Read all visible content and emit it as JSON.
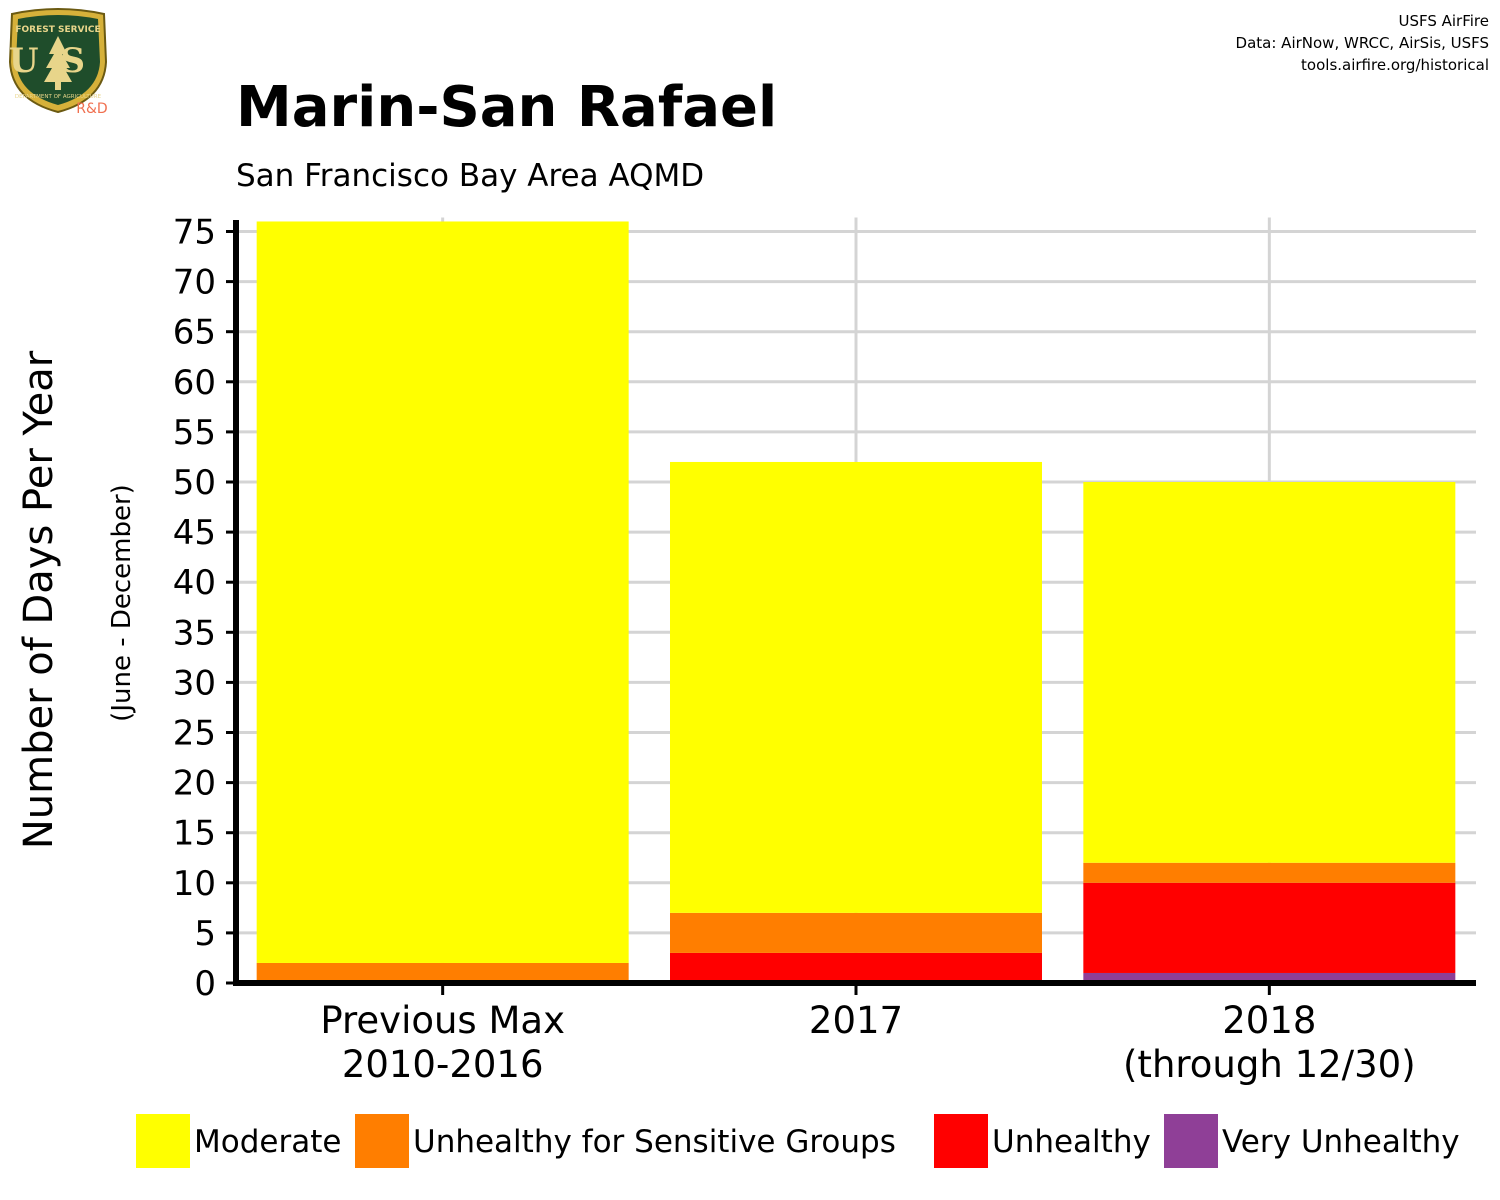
{
  "logo": {
    "top_text": "FOREST SERVICE",
    "letters": "US",
    "bottom_text": "DEPARTMENT OF AGRICULTURE",
    "badge": "R&D"
  },
  "credits": {
    "line1": "USFS AirFire",
    "line2": "Data: AirNow, WRCC, AirSis, USFS",
    "line3": "tools.airfire.org/historical"
  },
  "colors": {
    "Moderate": "#FFFF00",
    "Unhealthy for Sensitive Groups": "#FF7E00",
    "Unhealthy": "#FF0000",
    "Very Unhealthy": "#8F3F97",
    "grid": "#d4d4d4",
    "axis": "#000000"
  },
  "chart_data": {
    "type": "bar",
    "stacked": true,
    "title": "Marin-San Rafael",
    "subtitle": "San Francisco Bay Area AQMD",
    "ylabel": "Number of Days Per Year",
    "ylabel_sub": "(June - December)",
    "xlabel": "",
    "ylim": [
      0,
      76
    ],
    "yticks": [
      0,
      5,
      10,
      15,
      20,
      25,
      30,
      35,
      40,
      45,
      50,
      55,
      60,
      65,
      70,
      75
    ],
    "grid": true,
    "legend_position": "bottom",
    "categories": [
      [
        "Previous Max",
        "2010-2016"
      ],
      [
        "2017"
      ],
      [
        "2018",
        "(through 12/30)"
      ]
    ],
    "series": [
      {
        "name": "Very Unhealthy",
        "values": [
          0,
          0,
          1
        ]
      },
      {
        "name": "Unhealthy",
        "values": [
          0,
          3,
          9
        ]
      },
      {
        "name": "Unhealthy for Sensitive Groups",
        "values": [
          2,
          4,
          2
        ]
      },
      {
        "name": "Moderate",
        "values": [
          74,
          45,
          38
        ]
      }
    ],
    "legend": [
      "Moderate",
      "Unhealthy for Sensitive Groups",
      "Unhealthy",
      "Very Unhealthy"
    ]
  }
}
